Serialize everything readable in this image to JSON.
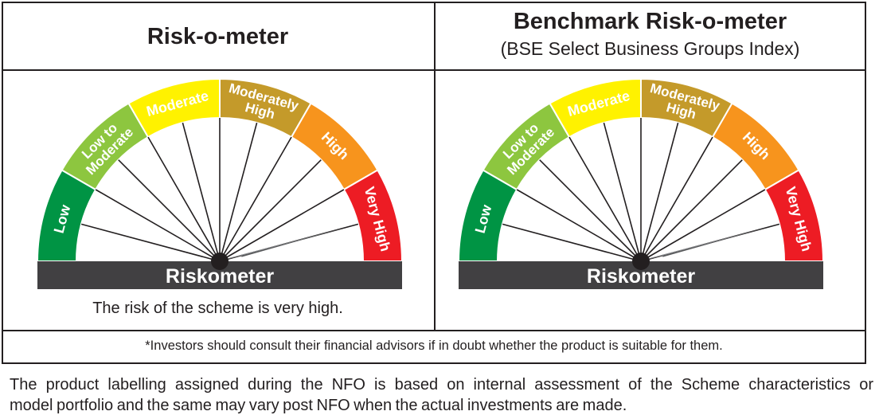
{
  "left_panel": {
    "title": "Risk-o-meter",
    "caption": "The risk of the scheme is very high."
  },
  "right_panel": {
    "title": "Benchmark Risk-o-meter",
    "subtitle": "(BSE Select Business Groups Index)"
  },
  "riskometer": {
    "bar_label": "Riskometer",
    "level": "Very High",
    "segments": [
      {
        "lines": [
          "Low"
        ],
        "color": "#009444"
      },
      {
        "lines": [
          "Low to",
          "Moderate"
        ],
        "color": "#8dc63f"
      },
      {
        "lines": [
          "Moderate"
        ],
        "color": "#fff200"
      },
      {
        "lines": [
          "Moderately",
          "High"
        ],
        "color": "#c49a2a"
      },
      {
        "lines": [
          "High"
        ],
        "color": "#f7941d"
      },
      {
        "lines": [
          "Very High"
        ],
        "color": "#ed1c24"
      }
    ]
  },
  "disclaimer": "*Investors should consult their financial advisors if in doubt whether the product is suitable for them.",
  "footnote": {
    "line1": "The product labelling assigned during the NFO is based on internal assessment of the Scheme characteristics or",
    "line2": "model portfolio and the same may vary post NFO when the actual investments are made."
  }
}
